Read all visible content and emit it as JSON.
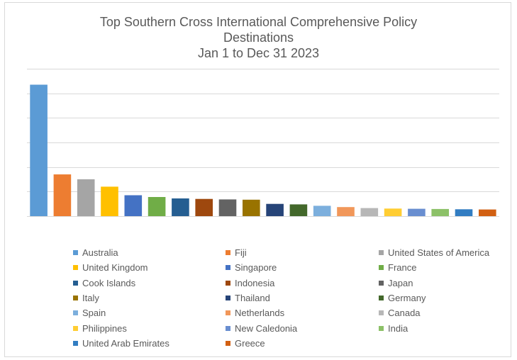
{
  "chart_data": {
    "type": "bar",
    "title": [
      "Top Southern Cross International Comprehensive Policy",
      "Destinations",
      "Jan 1 to Dec 31 2023"
    ],
    "xlabel": "",
    "ylabel": "",
    "ylim": [
      0,
      6
    ],
    "grid": true,
    "legend_position": "bottom",
    "categories": [
      "Australia",
      "Fiji",
      "United States of America",
      "United Kingdom",
      "Singapore",
      "France",
      "Cook Islands",
      "Indonesia",
      "Japan",
      "Italy",
      "Thailand",
      "Germany",
      "Spain",
      "Netherlands",
      "Canada",
      "Philippines",
      "New Caledonia",
      "India",
      "United Arab Emirates",
      "Greece"
    ],
    "values": [
      5.35,
      1.7,
      1.5,
      1.2,
      0.85,
      0.78,
      0.72,
      0.7,
      0.68,
      0.67,
      0.5,
      0.48,
      0.42,
      0.37,
      0.33,
      0.31,
      0.3,
      0.29,
      0.28,
      0.27
    ],
    "colors": [
      "#5b9bd5",
      "#ed7d31",
      "#a5a5a5",
      "#ffc000",
      "#4472c4",
      "#70ad47",
      "#255e91",
      "#9e480e",
      "#636363",
      "#997300",
      "#264478",
      "#43682b",
      "#7cafdd",
      "#f1975a",
      "#b7b7b7",
      "#ffcd33",
      "#698ed0",
      "#8cc168",
      "#327dc2",
      "#d26012"
    ]
  }
}
